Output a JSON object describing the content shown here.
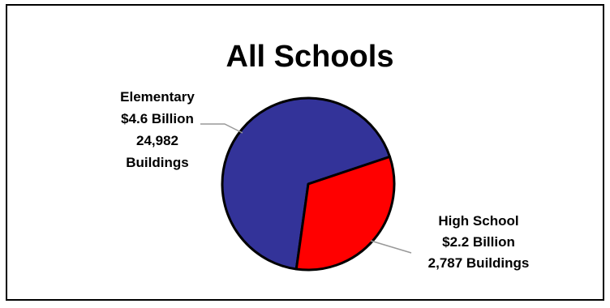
{
  "chart_data": {
    "type": "pie",
    "title": "All Schools",
    "slices": [
      {
        "category": "Elementary",
        "value": 4.6,
        "value_label": "$4.6 Billion",
        "buildings_label": "24,982",
        "buildings_unit": "Buildings",
        "color": "#333399"
      },
      {
        "category": "High School",
        "value": 2.2,
        "value_label": "$2.2 Billion",
        "buildings_label": "2,787 Buildings",
        "color": "#FF0000"
      }
    ],
    "legend": "none",
    "slice_outline_color": "#000000"
  }
}
